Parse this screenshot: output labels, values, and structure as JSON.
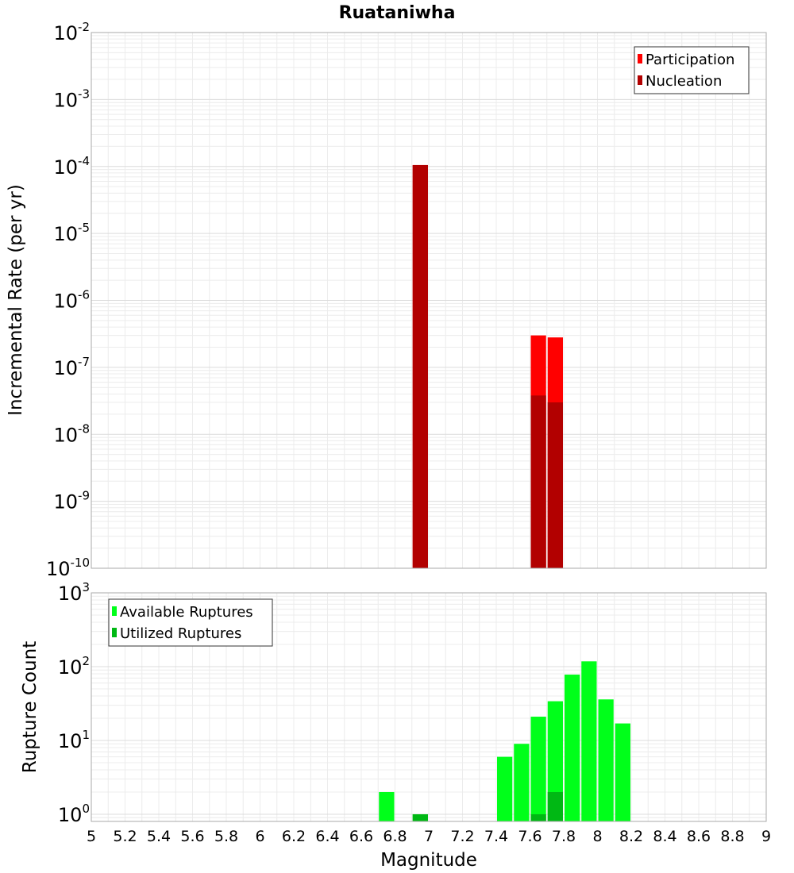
{
  "chart_data": {
    "type": "bar",
    "title": "Ruataniwha",
    "xlabel": "Magnitude",
    "x_ticks": [
      "5",
      "5.2",
      "5.4",
      "5.6",
      "5.8",
      "6",
      "6.2",
      "6.4",
      "6.6",
      "6.8",
      "7",
      "7.2",
      "7.4",
      "7.6",
      "7.8",
      "8",
      "8.2",
      "8.4",
      "8.6",
      "8.8",
      "9"
    ],
    "xlim": [
      5,
      9
    ],
    "grid": true,
    "panels": [
      {
        "ylabel": "Incremental Rate (per yr)",
        "yscale": "log",
        "ylim": [
          1e-10,
          0.01
        ],
        "y_ticks": [
          {
            "base": "10",
            "exp": "-2"
          },
          {
            "base": "10",
            "exp": "-3"
          },
          {
            "base": "10",
            "exp": "-4"
          },
          {
            "base": "10",
            "exp": "-5"
          },
          {
            "base": "10",
            "exp": "-6"
          },
          {
            "base": "10",
            "exp": "-7"
          },
          {
            "base": "10",
            "exp": "-8"
          },
          {
            "base": "10",
            "exp": "-9"
          },
          {
            "base": "10",
            "exp": "-10"
          }
        ],
        "legend_position": "top-right",
        "series": [
          {
            "name": "Participation",
            "color": "#ff0000",
            "points": [
              {
                "x": 6.95,
                "y": 0.000105
              },
              {
                "x": 7.65,
                "y": 3e-07
              },
              {
                "x": 7.75,
                "y": 2.8e-07
              }
            ]
          },
          {
            "name": "Nucleation",
            "color": "#b20000",
            "points": [
              {
                "x": 6.95,
                "y": 0.000105
              },
              {
                "x": 7.65,
                "y": 3.8e-08
              },
              {
                "x": 7.75,
                "y": 3e-08
              }
            ]
          }
        ]
      },
      {
        "ylabel": "Rupture Count",
        "yscale": "log",
        "ylim": [
          0.8,
          1000
        ],
        "y_ticks": [
          {
            "base": "10",
            "exp": "3"
          },
          {
            "base": "10",
            "exp": "2"
          },
          {
            "base": "10",
            "exp": "1"
          },
          {
            "base": "10",
            "exp": "0"
          }
        ],
        "legend_position": "top-left",
        "series": [
          {
            "name": "Available Ruptures",
            "color": "#00ff1a",
            "points": [
              {
                "x": 6.75,
                "y": 2
              },
              {
                "x": 6.95,
                "y": 1
              },
              {
                "x": 7.45,
                "y": 6
              },
              {
                "x": 7.55,
                "y": 9
              },
              {
                "x": 7.65,
                "y": 21
              },
              {
                "x": 7.75,
                "y": 34
              },
              {
                "x": 7.85,
                "y": 78
              },
              {
                "x": 7.95,
                "y": 118
              },
              {
                "x": 8.05,
                "y": 36
              },
              {
                "x": 8.15,
                "y": 17
              }
            ]
          },
          {
            "name": "Utilized Ruptures",
            "color": "#00b814",
            "points": [
              {
                "x": 6.95,
                "y": 1
              },
              {
                "x": 7.65,
                "y": 1
              },
              {
                "x": 7.75,
                "y": 2
              }
            ]
          }
        ]
      }
    ]
  }
}
